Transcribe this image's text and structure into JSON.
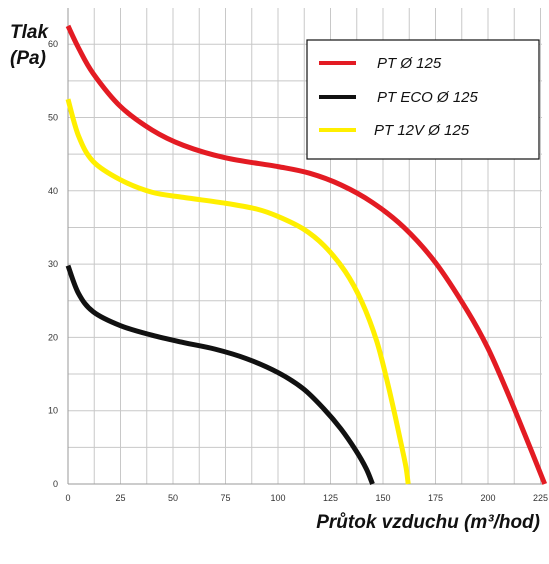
{
  "chart_data": {
    "type": "line",
    "ylabel_line1": "Tlak",
    "ylabel_line2": "(Pa)",
    "xlabel": "Průtok vzduchu (m³/hod)",
    "xlim": [
      0,
      228
    ],
    "ylim": [
      0,
      65
    ],
    "x_ticks": [
      0,
      25,
      50,
      75,
      100,
      125,
      150,
      175,
      200,
      225
    ],
    "y_ticks": [
      0,
      10,
      20,
      30,
      40,
      50,
      60
    ],
    "grid": true,
    "legend_position": "top-right",
    "series": [
      {
        "name": "PT Ø 125",
        "color": "#e31b23",
        "points": [
          [
            0,
            62.5
          ],
          [
            5,
            59.5
          ],
          [
            12,
            56
          ],
          [
            25,
            51.5
          ],
          [
            40,
            48.3
          ],
          [
            55,
            46.2
          ],
          [
            75,
            44.5
          ],
          [
            100,
            43.3
          ],
          [
            115,
            42.4
          ],
          [
            130,
            40.8
          ],
          [
            145,
            38.4
          ],
          [
            160,
            35
          ],
          [
            175,
            30.2
          ],
          [
            190,
            23.7
          ],
          [
            200,
            18.5
          ],
          [
            210,
            12
          ],
          [
            220,
            5
          ],
          [
            227,
            0
          ]
        ]
      },
      {
        "name": "PT ECO Ø 125",
        "color": "#111111",
        "points": [
          [
            0,
            29.8
          ],
          [
            5,
            26
          ],
          [
            12,
            23.5
          ],
          [
            25,
            21.6
          ],
          [
            40,
            20.3
          ],
          [
            55,
            19.3
          ],
          [
            70,
            18.4
          ],
          [
            85,
            17.1
          ],
          [
            100,
            15.2
          ],
          [
            112,
            13
          ],
          [
            122,
            10.2
          ],
          [
            130,
            7.5
          ],
          [
            137,
            4.6
          ],
          [
            142,
            2.1
          ],
          [
            145,
            0
          ]
        ]
      },
      {
        "name": "PT 12V Ø 125",
        "color": "#ffef00",
        "points": [
          [
            0,
            52.5
          ],
          [
            5,
            47.5
          ],
          [
            12,
            44
          ],
          [
            25,
            41.5
          ],
          [
            40,
            39.8
          ],
          [
            55,
            39.1
          ],
          [
            75,
            38.3
          ],
          [
            90,
            37.5
          ],
          [
            100,
            36.5
          ],
          [
            112,
            34.8
          ],
          [
            122,
            32.5
          ],
          [
            132,
            29
          ],
          [
            140,
            24.8
          ],
          [
            147,
            19.5
          ],
          [
            152,
            14
          ],
          [
            156,
            9
          ],
          [
            159,
            5
          ],
          [
            161,
            2.2
          ],
          [
            162,
            0
          ]
        ]
      }
    ]
  }
}
